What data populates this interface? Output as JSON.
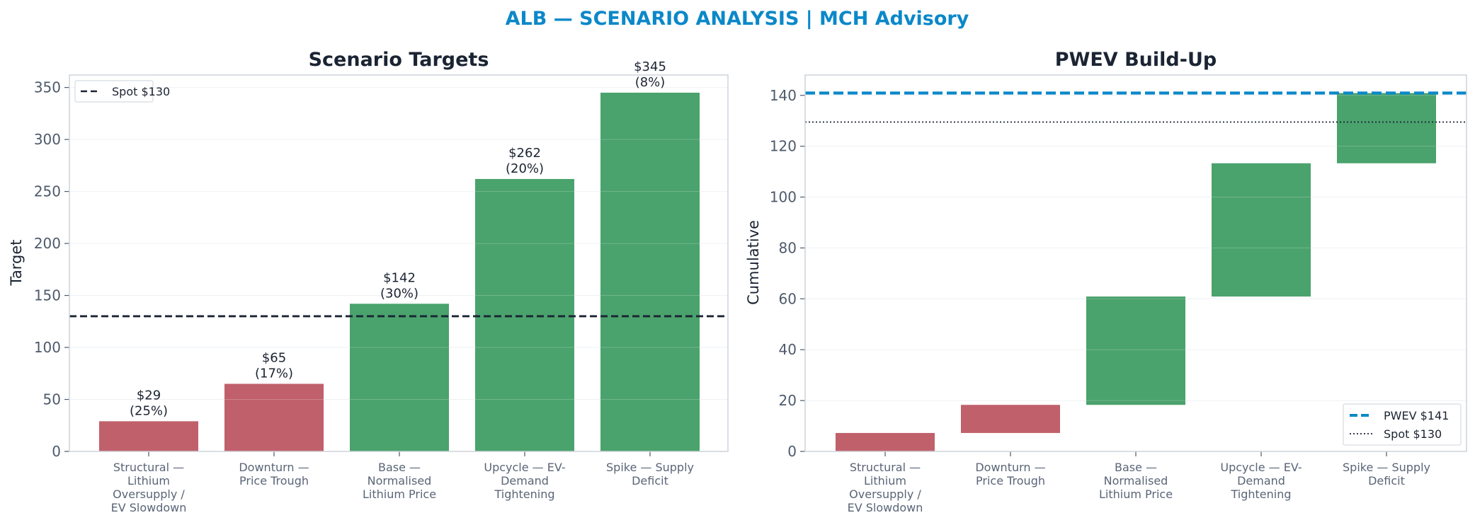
{
  "figure_title": "ALB — SCENARIO ANALYSIS | MCH Advisory",
  "colors": {
    "negative": "#c0606b",
    "positive": "#4aa26c",
    "spot_line": "#1b2433",
    "pwev_line": "#0b88c9",
    "axis": "#cdd3da",
    "grid": "#eef1f4"
  },
  "chart_data": [
    {
      "type": "bar",
      "title": "Scenario Targets",
      "xlabel": "",
      "ylabel": "Target",
      "categories": [
        "Structural — Lithium Oversupply / EV Slowdown",
        "Downturn — Price Trough",
        "Base — Normalised Lithium Price",
        "Upcycle — EV-Demand Tightening",
        "Spike — Supply Deficit"
      ],
      "category_lines": [
        [
          "Structural —",
          "Lithium",
          "Oversupply /",
          "EV Slowdown"
        ],
        [
          "Downturn —",
          "Price Trough"
        ],
        [
          "Base —",
          "Normalised",
          "Lithium Price"
        ],
        [
          "Upcycle — EV-",
          "Demand",
          "Tightening"
        ],
        [
          "Spike — Supply",
          "Deficit"
        ]
      ],
      "values": [
        29,
        65,
        142,
        262,
        345
      ],
      "bar_colors": [
        "negative",
        "negative",
        "positive",
        "positive",
        "positive"
      ],
      "data_labels": [
        [
          "$29",
          "(25%)"
        ],
        [
          "$65",
          "(17%)"
        ],
        [
          "$142",
          "(30%)"
        ],
        [
          "$262",
          "(20%)"
        ],
        [
          "$345",
          "(8%)"
        ]
      ],
      "probabilities_pct": [
        25,
        17,
        30,
        20,
        8
      ],
      "ylim": [
        0,
        362
      ],
      "yticks": [
        0,
        50,
        100,
        150,
        200,
        250,
        300,
        350
      ],
      "hlines": [
        {
          "label": "Spot $130",
          "value": 130,
          "style": "dashed",
          "color": "spot_line"
        }
      ],
      "grid": true,
      "legend": "top-left"
    },
    {
      "type": "bar",
      "subtype": "waterfall",
      "title": "PWEV Build-Up",
      "xlabel": "",
      "ylabel": "Cumulative",
      "categories": [
        "Structural — Lithium Oversupply / EV Slowdown",
        "Downturn — Price Trough",
        "Base — Normalised Lithium Price",
        "Upcycle — EV-Demand Tightening",
        "Spike — Supply Deficit"
      ],
      "category_lines": [
        [
          "Structural —",
          "Lithium",
          "Oversupply /",
          "EV Slowdown"
        ],
        [
          "Downturn —",
          "Price Trough"
        ],
        [
          "Base —",
          "Normalised",
          "Lithium Price"
        ],
        [
          "Upcycle — EV-",
          "Demand",
          "Tightening"
        ],
        [
          "Spike — Supply",
          "Deficit"
        ]
      ],
      "bottoms": [
        0,
        7.25,
        18.3,
        60.9,
        113.3
      ],
      "values": [
        7.25,
        11.05,
        42.6,
        52.4,
        27.6
      ],
      "bar_colors": [
        "negative",
        "negative",
        "positive",
        "positive",
        "positive"
      ],
      "ylim": [
        0,
        148
      ],
      "yticks": [
        0,
        20,
        40,
        60,
        80,
        100,
        120,
        140
      ],
      "hlines": [
        {
          "label": "PWEV $141",
          "value": 140.9,
          "style": "thick-dashed",
          "color": "pwev_line"
        },
        {
          "label": "Spot $130",
          "value": 129.5,
          "style": "dotted",
          "color": "spot_line"
        }
      ],
      "grid": true,
      "legend": "bottom-right"
    }
  ]
}
